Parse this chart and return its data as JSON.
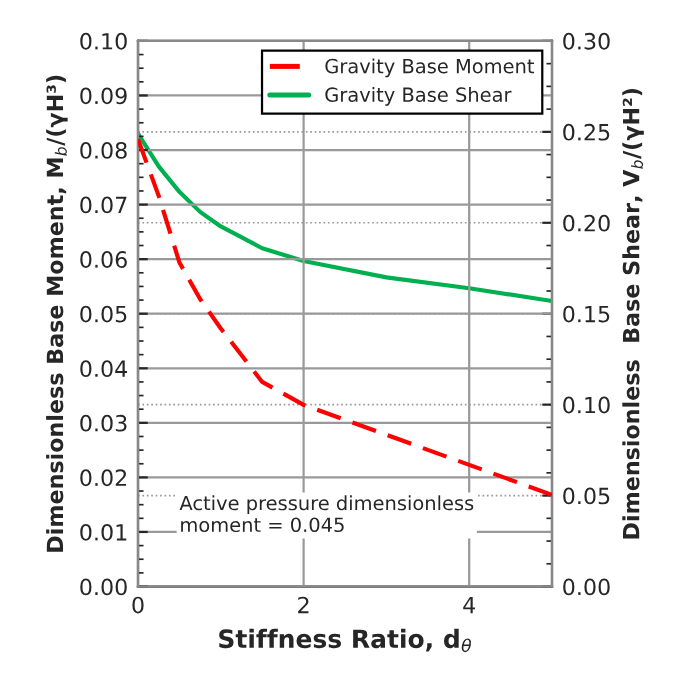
{
  "chart_data": {
    "type": "line",
    "xlabel": "Stiffness Ratio, d$_{θ}$",
    "ylabel": "Dimensionless Base Moment, M$_{b}$/(γH³)",
    "y2label": "Dimensionless  Base Shear, V$_{b}$/(γH²)",
    "x": [
      0,
      0.25,
      0.5,
      0.75,
      1,
      1.5,
      2,
      3,
      4,
      5
    ],
    "series": [
      {
        "name": "Gravity Base Moment",
        "color": "#ff0000",
        "line_style": "dashed",
        "values": [
          0.082,
          0.0716,
          0.0594,
          0.0527,
          0.0473,
          0.0375,
          0.0333,
          0.0278,
          0.0223,
          0.0168
        ]
      },
      {
        "name": "Gravity Base Shear",
        "color": "#00b050",
        "line_style": "solid",
        "axis": "y2",
        "values": [
          0.249,
          0.231,
          0.217,
          0.206,
          0.198,
          0.186,
          0.179,
          0.17,
          0.164,
          0.157
        ]
      }
    ],
    "xlim": [
      0,
      5
    ],
    "xticks": [
      0,
      2,
      4
    ],
    "ylim": [
      0,
      0.1
    ],
    "yticks": [
      {
        "value": 0,
        "label": "0.00"
      },
      0.01,
      0.02,
      0.03,
      0.04,
      0.05,
      0.06,
      0.07,
      0.08,
      0.09,
      {
        "value": 0.1,
        "label": "0.10"
      }
    ],
    "y2lim": [
      0,
      0.3
    ],
    "y2ticks": [
      {
        "value": 0,
        "label": "0.00"
      },
      0.05,
      {
        "value": 0.1,
        "label": "0.10"
      },
      0.15,
      {
        "value": 0.2,
        "label": "0.20"
      },
      0.25,
      {
        "value": 0.3,
        "label": "0.30"
      }
    ],
    "grid": true,
    "legend": "top right",
    "annotations": [
      "Active pressure dimensionless\nmoment = 0.045"
    ]
  }
}
